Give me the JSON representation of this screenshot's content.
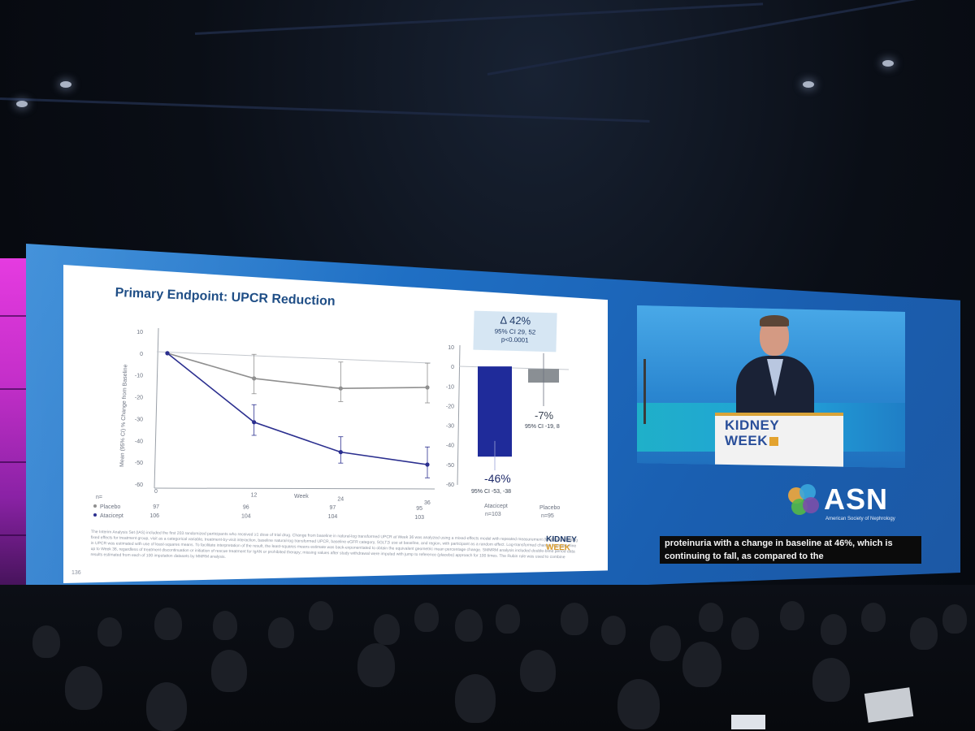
{
  "slide": {
    "title": "Primary Endpoint: UPCR Reduction",
    "page_number": "136",
    "ylabel": "Mean (95% CI) % Change from Baseline",
    "xlabel": "Week",
    "n_label": "n=",
    "y_ticks": [
      "10",
      "0",
      "-10",
      "-20",
      "-30",
      "-40",
      "-50",
      "-60"
    ],
    "x_ticks": [
      "0",
      "12",
      "24",
      "36"
    ],
    "bar_y_ticks": [
      "10",
      "0",
      "-10",
      "-20",
      "-30",
      "-40",
      "-50",
      "-60"
    ],
    "legend": {
      "placebo": "Placebo",
      "atacicept": "Atacicept"
    },
    "n_placebo": [
      "97",
      "96",
      "97",
      "95"
    ],
    "n_atacicept": [
      "106",
      "104",
      "104",
      "103"
    ],
    "delta": {
      "line1": "Δ 42%",
      "line2": "95% CI 29, 52",
      "line3": "p<0.0001"
    },
    "atacicept_bar": {
      "value_label": "-46%",
      "ci_label": "95% CI -53, -38",
      "name": "Atacicept",
      "n": "n=103"
    },
    "placebo_bar": {
      "value_label": "-7%",
      "ci_label": "95% CI -19, 8",
      "name": "Placebo",
      "n": "n=95"
    },
    "footnote": "The Interim Analysis Set (IAS) included the first 203 randomized participants who received ≥1 dose of trial drug. Change from baseline in natural-log transformed UPCR at Week 36 was analyzed using a mixed-effects model with repeated measurement (MMRM), including fixed effects for treatment group, visit as a categorical variable, treatment-by-visit interaction, baseline natural-log transformed UPCR, baseline eGFR category, SGLT2i use at baseline, and region, with participant as a random effect. Log-transformed change from baseline in UPCR was estimated with use of least-squares means. To facilitate interpretation of the result, the least-squares means estimate was back-exponentiated to obtain the equivalent geometric mean percentage change. SMMRM analysis included double-blind period data up to Week 36, regardless of treatment discontinuation or initiation of rescue treatment for IgAN or prohibited therapy; missing values after study withdrawal were imputed with jump to reference (placebo) approach for 100 times. The Rubin rule was used to combine results estimated from each of 100 imputation datasets by MMRM analysis.",
    "kidney_week_logo_line1": "KIDNEY",
    "kidney_week_logo_line2": "WEEK"
  },
  "chart_data": [
    {
      "type": "line",
      "title": "Primary Endpoint: UPCR Reduction",
      "xlabel": "Week",
      "ylabel": "Mean (95% CI) % Change from Baseline",
      "x": [
        0,
        12,
        24,
        36
      ],
      "ylim": [
        -60,
        10
      ],
      "series": [
        {
          "name": "Placebo",
          "color": "#8f8f8f",
          "values": [
            0,
            -10,
            -13,
            -11
          ],
          "ci_low": [
            0,
            -17,
            -19,
            -18
          ],
          "ci_high": [
            0,
            1,
            -1,
            0
          ]
        },
        {
          "name": "Atacicept",
          "color": "#2b2f8f",
          "values": [
            0,
            -30,
            -42,
            -46
          ],
          "ci_low": [
            0,
            -36,
            -47,
            -52
          ],
          "ci_high": [
            0,
            -22,
            -35,
            -38
          ]
        }
      ]
    },
    {
      "type": "bar",
      "categories": [
        "Atacicept",
        "Placebo"
      ],
      "values": [
        -46,
        -7
      ],
      "ci_low": [
        -53,
        -19
      ],
      "ci_high": [
        -38,
        8
      ],
      "colors": [
        "#1f2b9a",
        "#8a8f94"
      ],
      "ylim": [
        -60,
        10
      ]
    }
  ],
  "video": {
    "podium_line1": "KIDNEY",
    "podium_line2": "WEEK"
  },
  "asn": {
    "name": "ASN",
    "subtitle": "American Society of Nephrology"
  },
  "caption": {
    "line1": "proteinuria with a change in baseline at 46%, which is",
    "line2": "continuing to fall, as compared to the"
  }
}
